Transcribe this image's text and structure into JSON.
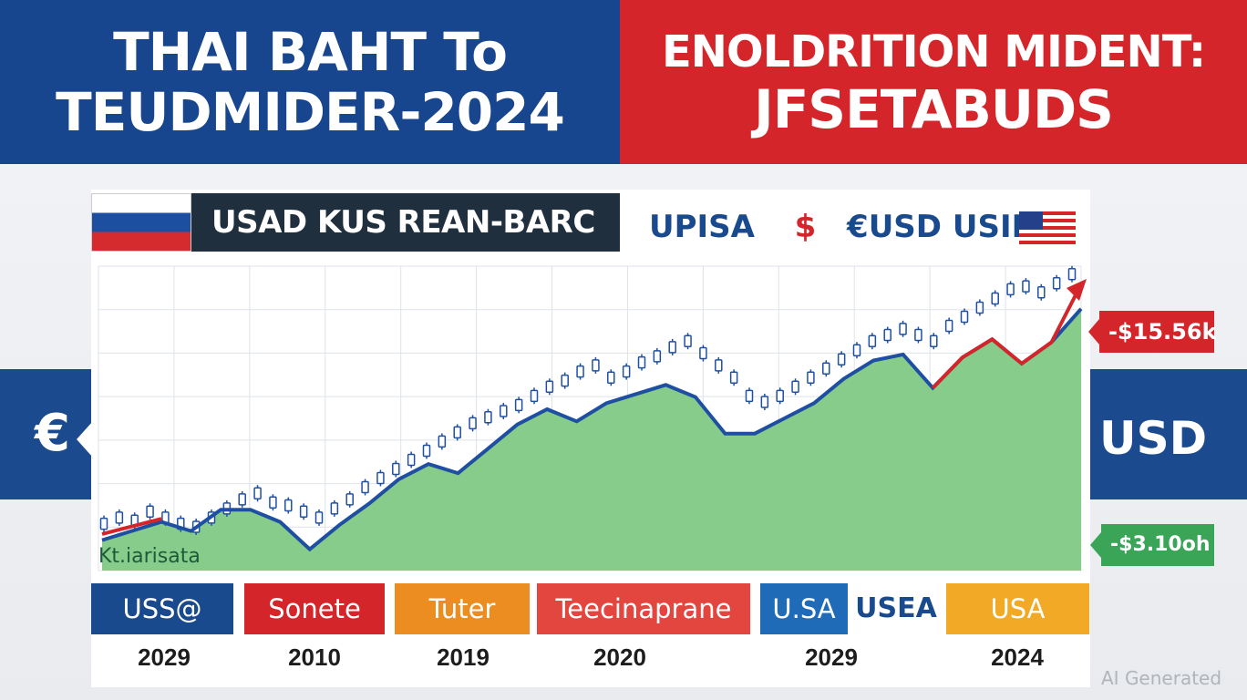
{
  "header": {
    "left_line1": "THAI BAHT To",
    "left_line2": "TEUDMIDER-2024",
    "right_line1": "ENOLDRITION MIDENT:",
    "right_line2": "JFSETABUDS"
  },
  "chart_header": {
    "label": "USAD KUS REAN-BARC",
    "right_text_a": "UPISA",
    "right_text_sym": "$",
    "right_text_b": "€USD USIN"
  },
  "side": {
    "left_symbol": "€",
    "right_symbol": "USD"
  },
  "callouts": {
    "top": "-$15.56k",
    "bottom": "-$3.10oh"
  },
  "chart_data": {
    "type": "area",
    "title": "",
    "xlabel": "",
    "ylabel": "",
    "ylim": [
      0,
      100
    ],
    "grid": true,
    "note": "Kt.iarisata",
    "series": [
      {
        "name": "",
        "color": "#1f4fa3",
        "fill": "#82c985",
        "values": [
          10,
          13,
          16,
          13,
          20,
          20,
          16,
          7,
          15,
          22,
          30,
          35,
          32,
          40,
          48,
          53,
          49,
          55,
          58,
          61,
          57,
          45,
          45,
          50,
          55,
          63,
          69,
          71,
          60,
          70,
          76,
          68,
          75,
          86
        ]
      },
      {
        "name": "",
        "color": "#d4262a",
        "values": [
          null,
          null,
          null,
          null,
          null,
          null,
          null,
          null,
          null,
          null,
          null,
          null,
          null,
          null,
          null,
          null,
          null,
          null,
          null,
          null,
          null,
          null,
          null,
          null,
          null,
          null,
          null,
          null,
          60,
          70,
          76,
          68,
          75,
          94
        ]
      }
    ],
    "candles": [
      10,
      12,
      11,
      14,
      12,
      10,
      9,
      12,
      15,
      18,
      20,
      17,
      16,
      14,
      12,
      15,
      18,
      22,
      25,
      28,
      31,
      34,
      37,
      40,
      43,
      45,
      47,
      49,
      52,
      55,
      57,
      60,
      62,
      58,
      60,
      63,
      65,
      68,
      70,
      66,
      62,
      58,
      52,
      50,
      52,
      55,
      58,
      61,
      64,
      67,
      70,
      72,
      74,
      72,
      70,
      75,
      78,
      81,
      84,
      87,
      88,
      86,
      89,
      92
    ]
  },
  "bottom_labels": [
    {
      "text": "USS@",
      "color": "#1a4a8e"
    },
    {
      "text": "Sonete",
      "color": "#d4262a"
    },
    {
      "text": "Tuter",
      "color": "#ec8d22"
    },
    {
      "text": "Teecinaprane",
      "color": "#e2463e"
    },
    {
      "text": "U.SA",
      "color": "#1f6bb8"
    },
    {
      "text": "USEA",
      "color": ""
    },
    {
      "text": "USA",
      "color": "#f1a926"
    }
  ],
  "years": [
    "2029",
    "2010",
    "2019",
    "2020",
    "2029",
    "2024"
  ],
  "watermark": "AI Generated"
}
